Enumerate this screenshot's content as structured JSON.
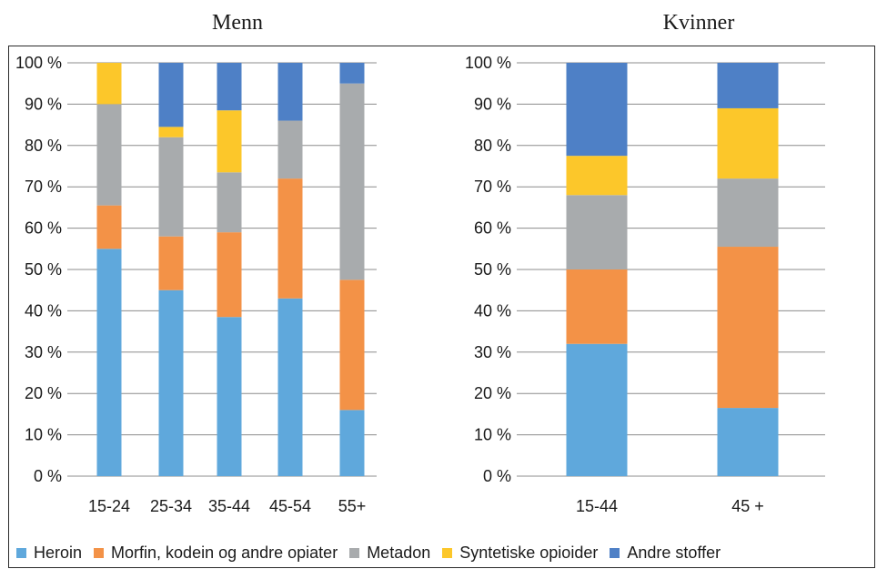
{
  "chart_data": [
    {
      "type": "bar",
      "stacked": true,
      "percent": true,
      "title": "Menn",
      "categories": [
        "15-24",
        "25-34",
        "35-44",
        "45-54",
        "55+"
      ],
      "yticks": [
        "0 %",
        "10 %",
        "20 %",
        "30 %",
        "40 %",
        "50 %",
        "60 %",
        "70 %",
        "80 %",
        "90 %",
        "100 %"
      ],
      "ylim": [
        0,
        100
      ],
      "series": [
        {
          "name": "Heroin",
          "color": "#5fa8dc",
          "values": [
            55,
            45,
            38.5,
            43,
            16
          ]
        },
        {
          "name": "Morfin, kodein og andre opiater",
          "color": "#f39247",
          "values": [
            10.5,
            13,
            20.5,
            29,
            31.5
          ]
        },
        {
          "name": "Metadon",
          "color": "#a8abad",
          "values": [
            24.5,
            24,
            14.5,
            14,
            47.5
          ]
        },
        {
          "name": "Syntetiske opioider",
          "color": "#fcc72a",
          "values": [
            10,
            2.5,
            15,
            0,
            0
          ]
        },
        {
          "name": "Andre stoffer",
          "color": "#4e80c6",
          "values": [
            0,
            15.5,
            11.5,
            14,
            5
          ]
        }
      ]
    },
    {
      "type": "bar",
      "stacked": true,
      "percent": true,
      "title": "Kvinner",
      "categories": [
        "15-44",
        "45 +"
      ],
      "yticks": [
        "0 %",
        "10 %",
        "20 %",
        "30 %",
        "40 %",
        "50 %",
        "60 %",
        "70 %",
        "80 %",
        "90 %",
        "100 %"
      ],
      "ylim": [
        0,
        100
      ],
      "series": [
        {
          "name": "Heroin",
          "color": "#5fa8dc",
          "values": [
            32,
            16.5
          ]
        },
        {
          "name": "Morfin, kodein og andre opiater",
          "color": "#f39247",
          "values": [
            18,
            39
          ]
        },
        {
          "name": "Metadon",
          "color": "#a8abad",
          "values": [
            18,
            16.5
          ]
        },
        {
          "name": "Syntetiske opioider",
          "color": "#fcc72a",
          "values": [
            9.5,
            17
          ]
        },
        {
          "name": "Andre stoffer",
          "color": "#4e80c6",
          "values": [
            22.5,
            11
          ]
        }
      ]
    }
  ],
  "legend": [
    {
      "label": "Heroin",
      "color": "#5fa8dc"
    },
    {
      "label": "Morfin, kodein og andre opiater",
      "color": "#f39247"
    },
    {
      "label": "Metadon",
      "color": "#a8abad"
    },
    {
      "label": "Syntetiske opioider",
      "color": "#fcc72a"
    },
    {
      "label": "Andre stoffer",
      "color": "#4e80c6"
    }
  ]
}
